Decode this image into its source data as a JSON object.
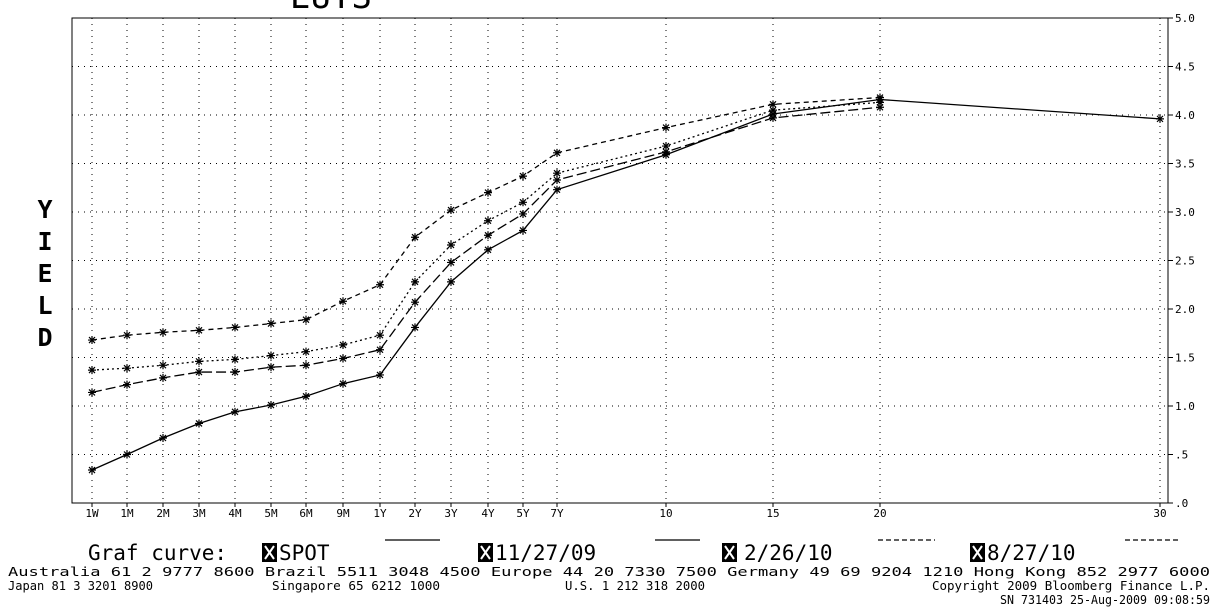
{
  "chart_data": {
    "type": "line",
    "title": "EUTS",
    "y_label": "YIELD",
    "categories": [
      "1W",
      "1M",
      "2M",
      "3M",
      "4M",
      "5M",
      "6M",
      "9M",
      "1Y",
      "2Y",
      "3Y",
      "4Y",
      "5Y",
      "7Y",
      "10",
      "15",
      "20",
      "30"
    ],
    "ylim": [
      0,
      5
    ],
    "yticks": [
      {
        "value": 0,
        "label": ".0"
      },
      {
        "value": 0.5,
        "label": ".5"
      },
      {
        "value": 1,
        "label": "1.0"
      },
      {
        "value": 1.5,
        "label": "1.5"
      },
      {
        "value": 2,
        "label": "2.0"
      },
      {
        "value": 2.5,
        "label": "2.5"
      },
      {
        "value": 3,
        "label": "3.0"
      },
      {
        "value": 3.5,
        "label": "3.5"
      },
      {
        "value": 4,
        "label": "4.0"
      },
      {
        "value": 4.5,
        "label": "4.5"
      },
      {
        "value": 5,
        "label": "5.0"
      }
    ],
    "grid": true,
    "legend_title": "Graf curve:",
    "series": [
      {
        "name": "SPOT",
        "color": "#000000",
        "line_style": "solid",
        "values": [
          0.34,
          0.5,
          0.67,
          0.82,
          0.94,
          1.01,
          1.1,
          1.23,
          1.32,
          1.81,
          2.28,
          2.61,
          2.81,
          3.23,
          3.59,
          4.01,
          4.16,
          3.96
        ]
      },
      {
        "name": "11/27/09",
        "color": "#000000",
        "line_style": "long-dash",
        "values": [
          1.14,
          1.22,
          1.29,
          1.35,
          1.35,
          1.4,
          1.42,
          1.49,
          1.58,
          2.07,
          2.48,
          2.76,
          2.98,
          3.33,
          3.62,
          3.97,
          4.08,
          null
        ]
      },
      {
        "name": "2/26/10",
        "color": "#000000",
        "line_style": "dotted",
        "values": [
          1.37,
          1.39,
          1.42,
          1.46,
          1.48,
          1.52,
          1.56,
          1.63,
          1.73,
          2.28,
          2.66,
          2.91,
          3.1,
          3.4,
          3.68,
          4.05,
          4.13,
          null
        ]
      },
      {
        "name": "8/27/10",
        "color": "#000000",
        "line_style": "dash",
        "values": [
          1.68,
          1.73,
          1.76,
          1.78,
          1.81,
          1.85,
          1.89,
          2.08,
          2.25,
          2.74,
          3.02,
          3.2,
          3.37,
          3.61,
          3.87,
          4.11,
          4.18,
          null
        ]
      }
    ],
    "footer": [
      "Australia 61 2 9777 8600 Brazil 5511 3048 4500 Europe 44 20 7330 7500 Germany 49 69 9204 1210 Hong Kong 852 2977 6000",
      "Japan 81 3 3201 8900",
      "Singapore 65 6212 1000",
      "U.S. 1 212 318 2000",
      "Copyright 2009 Bloomberg Finance L.P.",
      "SN 731403 25-Aug-2009 09:08:59"
    ]
  }
}
